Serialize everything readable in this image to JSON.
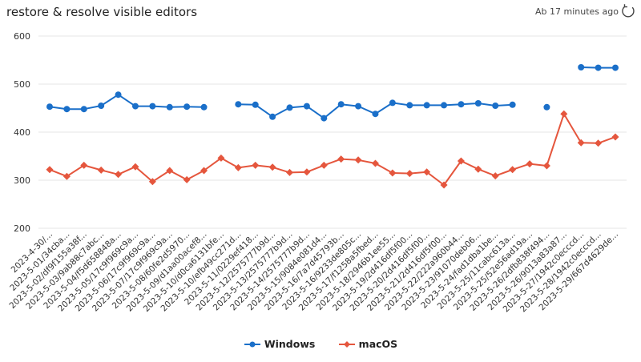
{
  "header": {
    "title": "restore & resolve visible editors",
    "status": "Ab 17 minutes ago"
  },
  "icons": {
    "refresh": "refresh-icon"
  },
  "colors": {
    "windows": "#1a6fc9",
    "macos": "#e5563d",
    "grid": "#e6e6e6"
  },
  "chart_data": {
    "type": "line",
    "title": "restore & resolve visible editors",
    "xlabel": "",
    "ylabel": "",
    "ylim": [
      200,
      600
    ],
    "yticks": [
      200,
      300,
      400,
      500,
      600
    ],
    "grid": true,
    "legend": "bottom",
    "categories": [
      "2023-4-30/...",
      "2023-5-01/34cba...",
      "2023-5-02/df9f155a38f...",
      "2023-5-03/9ab88c7abc...",
      "2023-5-04/f5d658848a...",
      "2023-5-05/17c9f969c9a...",
      "2023-5-06/17c9f969c9a...",
      "2023-5-07/17c9f969c9a...",
      "2023-5-08/60fe2d5970...",
      "2023-5-09/d1aa00acef8...",
      "2023-5-10/d0ca6131bfe...",
      "2023-5-10/efb49cc271d...",
      "2023-5-11/0229ef418...",
      "2023-5-12/2575777b9d...",
      "2023-5-13/2575777b9d...",
      "2023-5-14/2575777b9d...",
      "2023-5-15/9084e081d4...",
      "2023-5-16/7a7d45793b...",
      "2023-5-16/9233de805c...",
      "2023-5-17/f1258a5fbed...",
      "2023-5-18/2946b1ee55...",
      "2023-5-19/2d416df5f00...",
      "2023-5-20/2d416df5f00...",
      "2023-5-21/2d416df5f00...",
      "2023-5-22/222a960b44...",
      "2023-5-23/91070deb06...",
      "2023-5-24/fad1dba1be...",
      "2023-5-25/11cabc613a...",
      "2023-5-25/52e56ad19a...",
      "2023-5-26/2dfb838f494...",
      "2023-5-26/9013a83a87...",
      "2023-5-27/1942c0ecccd...",
      "2023-5-28/1942c0ecccd...",
      "2023-5-29/667d4629de..."
    ],
    "series": [
      {
        "name": "Windows",
        "marker": "circle",
        "values": [
          453,
          448,
          448,
          455,
          478,
          454,
          454,
          452,
          453,
          452,
          null,
          458,
          457,
          432,
          451,
          454,
          429,
          458,
          454,
          438,
          461,
          456,
          456,
          456,
          458,
          460,
          455,
          457,
          null,
          452,
          null,
          535,
          534,
          534
        ]
      },
      {
        "name": "macOS",
        "marker": "diamond",
        "values": [
          322,
          308,
          331,
          321,
          312,
          328,
          297,
          320,
          301,
          320,
          346,
          326,
          331,
          327,
          316,
          317,
          331,
          344,
          342,
          335,
          315,
          314,
          317,
          290,
          340,
          323,
          309,
          322,
          334,
          330,
          438,
          378,
          377,
          390
        ]
      }
    ]
  }
}
